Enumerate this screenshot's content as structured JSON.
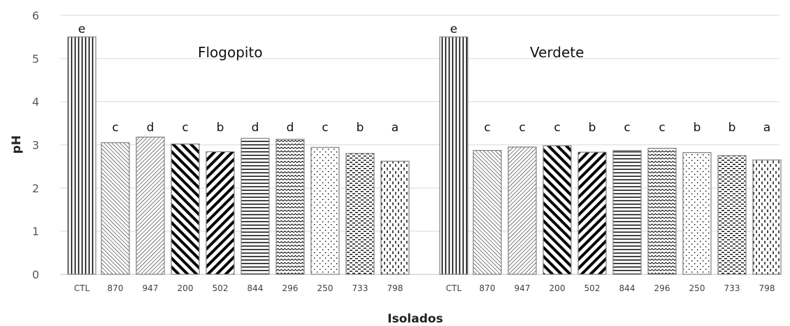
{
  "chart_data": {
    "type": "bar",
    "ylabel": "pH",
    "xlabel": "Isolados",
    "ylim": [
      0,
      6
    ],
    "yticks": [
      0,
      1,
      2,
      3,
      4,
      5,
      6
    ],
    "grid": true,
    "legend": "none",
    "groups": [
      {
        "name": "Flogopito",
        "categories": [
          "CTL",
          "870",
          "947",
          "200",
          "502",
          "844",
          "296",
          "250",
          "733",
          "798"
        ],
        "values": [
          5.5,
          3.05,
          3.18,
          3.02,
          2.84,
          3.15,
          3.13,
          2.94,
          2.8,
          2.62
        ],
        "letters": [
          "e",
          "c",
          "d",
          "c",
          "b",
          "d",
          "d",
          "c",
          "b",
          "a"
        ]
      },
      {
        "name": "Verdete",
        "categories": [
          "CTL",
          "870",
          "947",
          "200",
          "502",
          "844",
          "296",
          "250",
          "733",
          "798"
        ],
        "values": [
          5.5,
          2.87,
          2.95,
          2.98,
          2.83,
          2.87,
          2.92,
          2.82,
          2.75,
          2.65
        ],
        "letters": [
          "e",
          "c",
          "c",
          "c",
          "b",
          "c",
          "c",
          "b",
          "b",
          "a"
        ]
      }
    ],
    "patterns": [
      "vlines",
      "diag-thin-down",
      "diag-up",
      "diag-bold-down",
      "diag-bold-up",
      "hlines",
      "waves",
      "dots",
      "dashes",
      "vdashes"
    ]
  }
}
